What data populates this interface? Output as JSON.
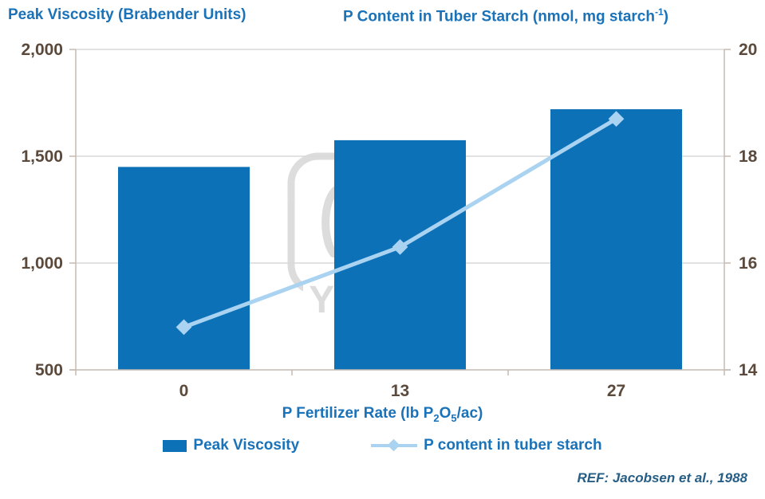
{
  "titles": {
    "left_axis_title": "Peak Viscosity (Brabender Units)",
    "right_axis_title_main": "P Content in Tuber Starch (nmol, mg starch",
    "right_axis_title_sup": "-1",
    "right_axis_title_close": ")"
  },
  "x_axis_title": {
    "part1": "P Fertilizer Rate (lb P",
    "sub1": "2",
    "part2": "O",
    "sub2": "5",
    "part3": "/ac)"
  },
  "legend": {
    "bar_label": "Peak Viscosity",
    "line_label": "P content in tuber starch"
  },
  "footer": {
    "reference": "REF: Jacobsen et al., 1988"
  },
  "colors": {
    "bar": "#0d71b8",
    "line": "#a9d3f1",
    "title_text": "#1a72b8",
    "tick_text": "#5b4a3b",
    "gridline": "#d9d9d9",
    "axis_line": "#c6bab0",
    "watermark": "#d9d9d9"
  },
  "watermark": {
    "label": "YARA"
  },
  "chart_data": {
    "type": "bar",
    "subtype": "combo-bar-line-dual-axis",
    "categories": [
      "0",
      "13",
      "27"
    ],
    "series": [
      {
        "name": "Peak Viscosity",
        "type": "bar",
        "axis": "left",
        "values": [
          1450,
          1575,
          1720
        ]
      },
      {
        "name": "P content in tuber starch",
        "type": "line",
        "axis": "right",
        "values": [
          14.8,
          16.3,
          18.7
        ]
      }
    ],
    "left_axis": {
      "label": "Peak Viscosity (Brabender Units)",
      "min": 500,
      "max": 2000,
      "ticks": [
        500,
        1000,
        1500,
        2000
      ],
      "tick_labels": [
        "500",
        "1,000",
        "1,500",
        "2,000"
      ]
    },
    "right_axis": {
      "label": "P Content in Tuber Starch (nmol, mg starch-1)",
      "min": 14,
      "max": 20,
      "ticks": [
        14,
        16,
        18,
        20
      ],
      "tick_labels": [
        "14",
        "16",
        "18",
        "20"
      ]
    },
    "xlabel": "P Fertilizer Rate (lb P2O5/ac)",
    "grid": true,
    "legend_position": "bottom"
  }
}
